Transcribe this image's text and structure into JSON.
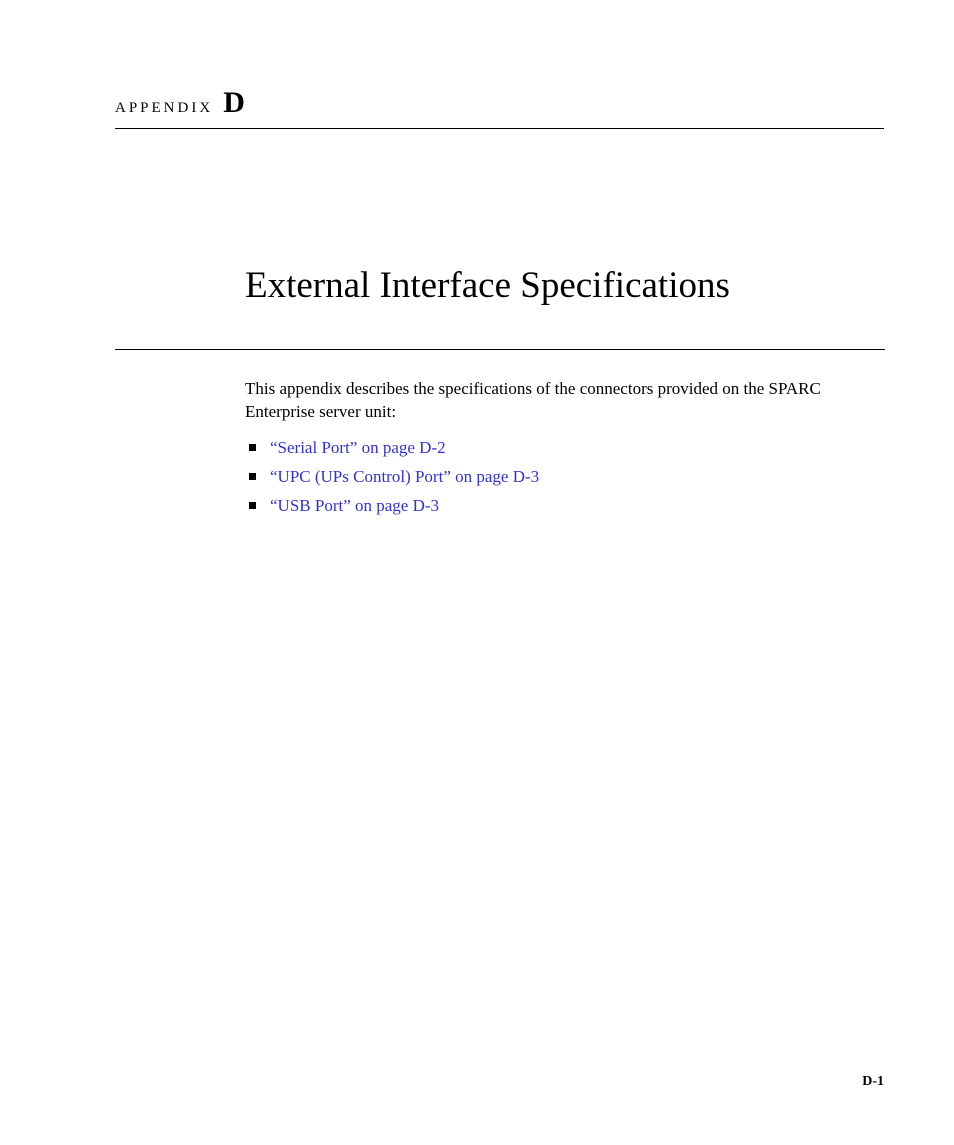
{
  "header": {
    "appendix_label": "APPENDIX",
    "appendix_letter": "D"
  },
  "title": "External Interface Specifications",
  "intro": "This appendix describes the specifications of the connectors provided on the SPARC Enterprise server unit:",
  "links": [
    {
      "text": "“Serial Port” on page D-2"
    },
    {
      "text": "“UPC (UPs Control) Port” on page D-3"
    },
    {
      "text": "“USB Port” on page D-3"
    }
  ],
  "page_number": "D-1",
  "colors": {
    "link_color": "#3333cc",
    "text_color": "#000000",
    "background": "#ffffff"
  },
  "typography": {
    "body_fontsize_pt": 12,
    "title_fontsize_pt": 28,
    "appendix_label_fontsize_pt": 11,
    "appendix_letter_fontsize_pt": 22,
    "font_family": "Palatino"
  }
}
